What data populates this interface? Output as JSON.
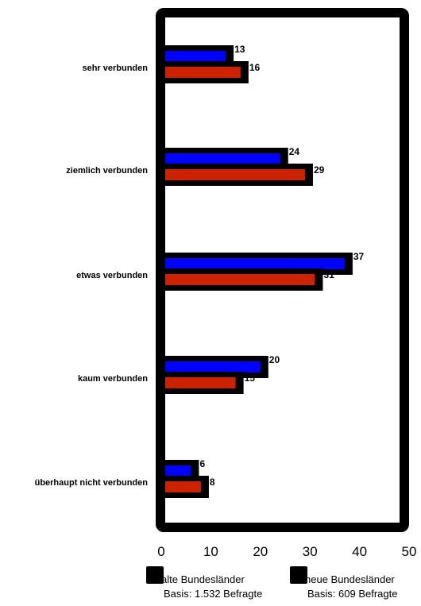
{
  "chart_data": {
    "type": "bar",
    "orientation": "horizontal",
    "categories": [
      "sehr verbunden",
      "ziemlich verbunden",
      "etwas verbunden",
      "kaum verbunden",
      "überhaupt nicht verbunden"
    ],
    "series": [
      {
        "name": "alte Bundesländer",
        "basis": "Basis: 1.532 Befragte",
        "values": [
          13,
          24,
          37,
          20,
          6
        ],
        "color": "#0000ff"
      },
      {
        "name": "neue Bundesländer",
        "basis": "Basis: 609 Befragte",
        "values": [
          16,
          29,
          31,
          15,
          8
        ],
        "color": "#cc2200"
      }
    ],
    "xlim": [
      0,
      50
    ],
    "xticks": [
      0,
      10,
      20,
      30,
      40,
      50
    ],
    "grid": false,
    "legend_position": "bottom",
    "shadow_color": "#000000",
    "frame_color": "#000000"
  }
}
